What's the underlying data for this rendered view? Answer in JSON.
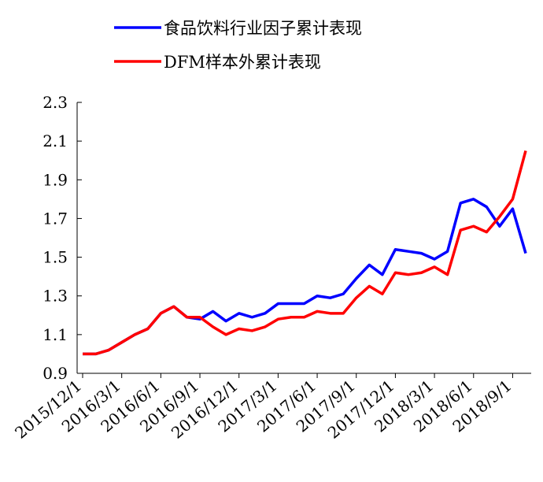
{
  "chart_data": {
    "type": "line",
    "categories": [
      "2015/12/1",
      null,
      null,
      "2016/3/1",
      null,
      null,
      "2016/6/1",
      null,
      null,
      "2016/9/1",
      null,
      null,
      "2016/12/1",
      null,
      null,
      "2017/3/1",
      null,
      null,
      "2017/6/1",
      null,
      null,
      "2017/9/1",
      null,
      null,
      "2017/12/1",
      null,
      null,
      "2018/3/1",
      null,
      null,
      "2018/6/1",
      null,
      null,
      "2018/9/1",
      null
    ],
    "series": [
      {
        "name": "食品饮料行业因子累计表现",
        "color": "#0000ff",
        "values": [
          1.0,
          1.0,
          1.02,
          1.06,
          1.1,
          1.13,
          1.21,
          1.245,
          1.19,
          1.18,
          1.22,
          1.17,
          1.21,
          1.19,
          1.21,
          1.26,
          1.26,
          1.26,
          1.3,
          1.29,
          1.31,
          1.39,
          1.46,
          1.41,
          1.54,
          1.53,
          1.52,
          1.49,
          1.53,
          1.78,
          1.8,
          1.76,
          1.66,
          1.75,
          1.52
        ]
      },
      {
        "name": "DFM样本外累计表现",
        "color": "#ff0000",
        "values": [
          1.0,
          1.0,
          1.02,
          1.06,
          1.1,
          1.13,
          1.21,
          1.245,
          1.19,
          1.19,
          1.14,
          1.1,
          1.13,
          1.12,
          1.14,
          1.18,
          1.19,
          1.19,
          1.22,
          1.21,
          1.21,
          1.29,
          1.35,
          1.31,
          1.42,
          1.41,
          1.42,
          1.45,
          1.41,
          1.64,
          1.66,
          1.63,
          1.71,
          1.8,
          2.05
        ]
      }
    ],
    "ylim": [
      0.9,
      2.3
    ],
    "yticks": [
      0.9,
      1.1,
      1.3,
      1.5,
      1.7,
      1.9,
      2.1,
      2.3
    ]
  }
}
